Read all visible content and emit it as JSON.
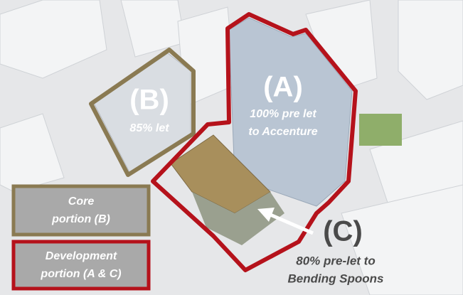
{
  "labels": {
    "a": {
      "title": "(A)",
      "lines": [
        "100% pre let",
        "to Accenture"
      ]
    },
    "b": {
      "title": "(B)",
      "lines": [
        "85% let"
      ]
    },
    "c": {
      "title": "(C)",
      "lines": [
        "80% pre-let to",
        "Bending Spoons"
      ]
    }
  },
  "legend": [
    {
      "lines": [
        "Core",
        "portion (B)"
      ]
    },
    {
      "lines": [
        "Development",
        "portion (A & C)"
      ]
    }
  ]
}
